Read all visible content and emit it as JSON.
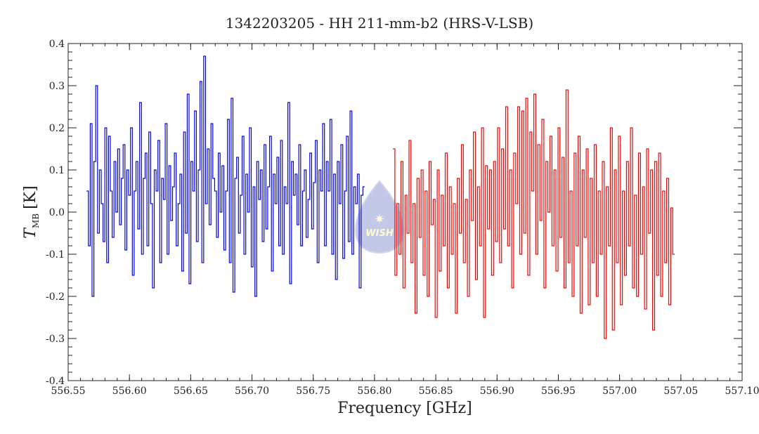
{
  "chart_data": {
    "type": "line",
    "title": "1342203205 - HH 211-mm-b2 (HRS-V-LSB)",
    "xlabel": "Frequency [GHz]",
    "ylabel_main": "T",
    "ylabel_sub": "MB",
    "ylabel_unit": "[K]",
    "xlim": [
      556.55,
      557.1
    ],
    "ylim": [
      -0.4,
      0.4
    ],
    "x_ticks": [
      "556.55",
      "556.60",
      "556.65",
      "556.70",
      "556.75",
      "556.80",
      "556.85",
      "556.90",
      "556.95",
      "557.00",
      "557.05",
      "557.10"
    ],
    "y_ticks": [
      "-0.4",
      "-0.3",
      "-0.2",
      "-0.1",
      "0.0",
      "0.1",
      "0.2",
      "0.3",
      "0.4"
    ],
    "grid": false,
    "logo_text": "WISH",
    "series": [
      {
        "name": "blue",
        "color": "#0000ff",
        "x_start": 556.565,
        "x_end": 556.792,
        "values": [
          0.05,
          -0.08,
          0.21,
          -0.2,
          0.12,
          0.3,
          -0.05,
          0.1,
          0.02,
          -0.07,
          0.2,
          -0.12,
          0.18,
          0.05,
          -0.06,
          0.12,
          0.0,
          0.15,
          -0.03,
          0.08,
          0.16,
          -0.09,
          0.1,
          0.04,
          0.2,
          -0.15,
          0.05,
          0.12,
          -0.04,
          0.26,
          -0.1,
          0.08,
          0.14,
          -0.08,
          0.19,
          0.02,
          -0.18,
          0.1,
          0.05,
          0.17,
          -0.12,
          0.08,
          0.03,
          0.21,
          -0.1,
          0.11,
          -0.02,
          0.06,
          0.14,
          -0.08,
          0.02,
          0.09,
          -0.14,
          0.19,
          -0.05,
          0.28,
          -0.17,
          0.12,
          0.05,
          0.24,
          -0.07,
          0.1,
          0.31,
          -0.12,
          0.37,
          0.02,
          0.15,
          -0.03,
          0.21,
          0.08,
          0.05,
          -0.06,
          0.14,
          0.0,
          0.11,
          -0.09,
          0.05,
          0.22,
          -0.12,
          0.27,
          -0.19,
          0.08,
          0.13,
          -0.05,
          0.04,
          0.18,
          -0.1,
          0.09,
          0.0,
          0.2,
          -0.13,
          0.06,
          -0.2,
          0.12,
          0.03,
          0.1,
          -0.07,
          0.16,
          -0.04,
          0.06,
          0.18,
          -0.14,
          0.09,
          0.02,
          0.13,
          -0.08,
          0.17,
          -0.1,
          0.06,
          0.02,
          0.26,
          -0.17,
          0.12,
          0.04,
          0.09,
          -0.03,
          0.16,
          -0.08,
          0.05,
          0.1,
          -0.06,
          0.03,
          0.14,
          -0.04,
          0.07,
          0.17,
          -0.12,
          0.1,
          0.05,
          0.21,
          -0.08,
          0.12,
          0.05,
          0.22,
          -0.1,
          0.09,
          -0.16,
          0.12,
          0.02,
          0.16,
          -0.11,
          0.05,
          0.18,
          -0.07,
          0.24,
          -0.1,
          0.06,
          0.02,
          0.09,
          -0.18,
          0.04,
          0.06
        ]
      },
      {
        "name": "red",
        "color": "#ff0000",
        "x_start": 556.815,
        "x_end": 557.045,
        "values": [
          0.15,
          -0.15,
          0.02,
          -0.1,
          0.12,
          -0.18,
          0.04,
          -0.05,
          0.17,
          -0.12,
          0.02,
          -0.24,
          0.08,
          -0.06,
          0.1,
          -0.15,
          0.05,
          -0.2,
          0.12,
          -0.03,
          0.03,
          -0.25,
          0.1,
          -0.14,
          0.04,
          -0.08,
          0.14,
          -0.18,
          0.06,
          -0.1,
          0.02,
          -0.24,
          0.08,
          -0.05,
          0.16,
          -0.12,
          0.03,
          -0.2,
          0.1,
          -0.02,
          0.19,
          -0.16,
          0.06,
          -0.08,
          0.2,
          -0.25,
          0.11,
          -0.04,
          0.1,
          -0.15,
          0.12,
          -0.07,
          0.2,
          -0.12,
          0.15,
          -0.04,
          0.25,
          -0.08,
          0.1,
          -0.18,
          0.14,
          0.02,
          0.25,
          -0.1,
          0.24,
          -0.05,
          0.27,
          -0.15,
          0.19,
          0.05,
          0.28,
          -0.1,
          0.16,
          -0.02,
          0.22,
          -0.18,
          0.12,
          0.0,
          0.18,
          -0.08,
          0.1,
          -0.14,
          0.2,
          -0.06,
          0.13,
          -0.18,
          0.29,
          -0.12,
          0.05,
          -0.2,
          0.14,
          -0.08,
          0.18,
          -0.24,
          0.1,
          -0.06,
          0.15,
          -0.22,
          0.08,
          -0.12,
          0.16,
          -0.2,
          0.05,
          -0.1,
          0.12,
          -0.3,
          0.06,
          -0.08,
          0.2,
          -0.28,
          0.1,
          -0.12,
          0.18,
          -0.22,
          0.05,
          -0.15,
          0.12,
          -0.08,
          0.2,
          -0.18,
          0.04,
          -0.2,
          0.14,
          -0.1,
          0.06,
          -0.23,
          0.15,
          -0.05,
          0.1,
          -0.28,
          0.12,
          -0.15,
          0.14,
          -0.2,
          0.05,
          -0.12,
          0.08,
          -0.22,
          0.01,
          -0.1
        ]
      }
    ]
  }
}
